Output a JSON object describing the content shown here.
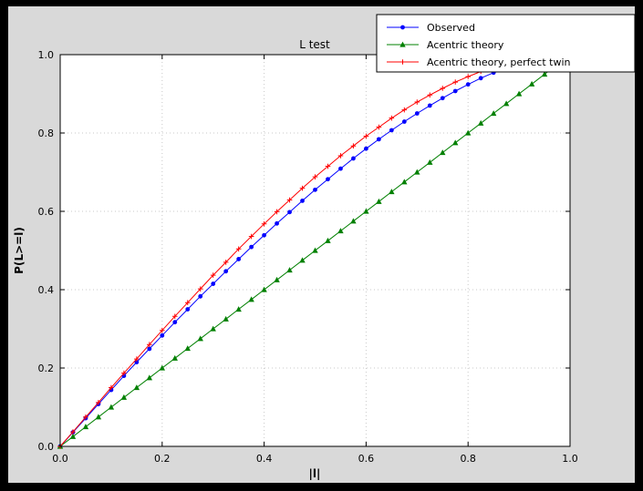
{
  "figure": {
    "title": "L test",
    "background_color": "#d9d9d9",
    "plot_background_color": "#ffffff",
    "frame_color": "#000000"
  },
  "chart_data": {
    "type": "line",
    "title": "L test",
    "xlabel": "|l|",
    "ylabel": "P(L>=l)",
    "xlim": [
      0,
      1
    ],
    "ylim": [
      0,
      1
    ],
    "xticks": [
      0.0,
      0.2,
      0.4,
      0.6,
      0.8,
      1.0
    ],
    "yticks": [
      0.0,
      0.2,
      0.4,
      0.6,
      0.8,
      1.0
    ],
    "grid": "dotted",
    "legend_position": "upper right",
    "series": [
      {
        "id": "observed",
        "name": "Observed",
        "color": "#0000ff",
        "marker": "circle",
        "x": [
          0.0,
          0.025,
          0.05,
          0.075,
          0.1,
          0.125,
          0.15,
          0.175,
          0.2,
          0.225,
          0.25,
          0.275,
          0.3,
          0.325,
          0.35,
          0.375,
          0.4,
          0.425,
          0.45,
          0.475,
          0.5,
          0.525,
          0.55,
          0.575,
          0.6,
          0.625,
          0.65,
          0.675,
          0.7,
          0.725,
          0.75,
          0.775,
          0.8,
          0.825,
          0.85
        ],
        "y": [
          0.0,
          0.036,
          0.072,
          0.108,
          0.144,
          0.18,
          0.215,
          0.249,
          0.283,
          0.317,
          0.35,
          0.383,
          0.415,
          0.447,
          0.478,
          0.509,
          0.539,
          0.569,
          0.598,
          0.627,
          0.655,
          0.682,
          0.709,
          0.735,
          0.76,
          0.784,
          0.807,
          0.829,
          0.85,
          0.87,
          0.889,
          0.907,
          0.924,
          0.94,
          0.954
        ]
      },
      {
        "id": "acentric-theory",
        "name": "Acentric theory",
        "color": "#008000",
        "marker": "triangle",
        "x": [
          0.0,
          0.025,
          0.05,
          0.075,
          0.1,
          0.125,
          0.15,
          0.175,
          0.2,
          0.225,
          0.25,
          0.275,
          0.3,
          0.325,
          0.35,
          0.375,
          0.4,
          0.425,
          0.45,
          0.475,
          0.5,
          0.525,
          0.55,
          0.575,
          0.6,
          0.625,
          0.65,
          0.675,
          0.7,
          0.725,
          0.75,
          0.775,
          0.8,
          0.825,
          0.85,
          0.875,
          0.9,
          0.925,
          0.95,
          0.975
        ],
        "y": [
          0.0,
          0.025,
          0.05,
          0.075,
          0.1,
          0.125,
          0.15,
          0.175,
          0.2,
          0.225,
          0.25,
          0.275,
          0.3,
          0.325,
          0.35,
          0.375,
          0.4,
          0.425,
          0.45,
          0.475,
          0.5,
          0.525,
          0.55,
          0.575,
          0.6,
          0.625,
          0.65,
          0.675,
          0.7,
          0.725,
          0.75,
          0.775,
          0.8,
          0.825,
          0.85,
          0.875,
          0.9,
          0.925,
          0.95,
          0.975
        ]
      },
      {
        "id": "acentric-theory-perfect-twin",
        "name": "Acentric theory, perfect twin",
        "color": "#ff0000",
        "marker": "plus",
        "x": [
          0.0,
          0.025,
          0.05,
          0.075,
          0.1,
          0.125,
          0.15,
          0.175,
          0.2,
          0.225,
          0.25,
          0.275,
          0.3,
          0.325,
          0.35,
          0.375,
          0.4,
          0.425,
          0.45,
          0.475,
          0.5,
          0.525,
          0.55,
          0.575,
          0.6,
          0.625,
          0.65,
          0.675,
          0.7,
          0.725,
          0.75,
          0.775,
          0.8,
          0.825,
          0.85
        ],
        "y": [
          0.0,
          0.037,
          0.075,
          0.112,
          0.15,
          0.187,
          0.223,
          0.26,
          0.296,
          0.332,
          0.367,
          0.402,
          0.437,
          0.47,
          0.504,
          0.536,
          0.568,
          0.599,
          0.629,
          0.659,
          0.688,
          0.715,
          0.742,
          0.767,
          0.792,
          0.815,
          0.838,
          0.859,
          0.879,
          0.897,
          0.914,
          0.93,
          0.944,
          0.957,
          0.968
        ]
      }
    ]
  }
}
